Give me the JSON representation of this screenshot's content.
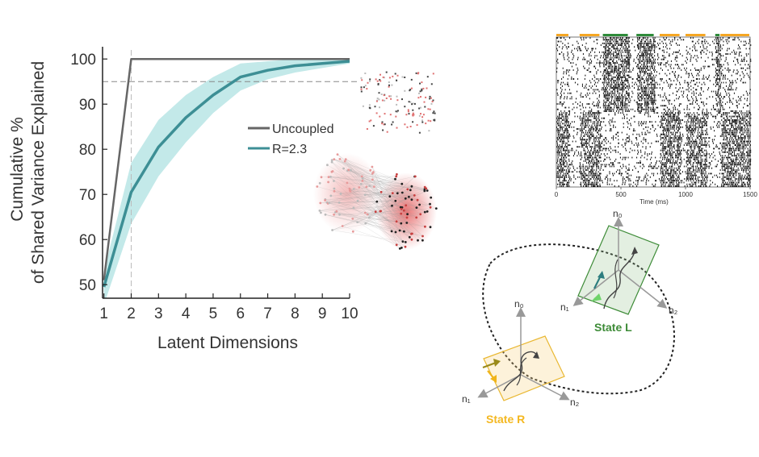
{
  "colors": {
    "uncoupled": "#666666",
    "coupled": "#3d8f95",
    "band": "#a9dfe0",
    "threshold": "#888888",
    "state_r": "#f4b821",
    "state_l": "#3d8b37",
    "raster_orange": "#f5a623",
    "raster_green": "#2e8b3a",
    "node_red": "#e04848",
    "node_dark": "#222222"
  },
  "chart_data": [
    {
      "type": "line",
      "title": "",
      "xlabel": "Latent Dimensions",
      "ylabel_lines": [
        "Cumulative %",
        "of Shared Variance Explained"
      ],
      "x": [
        1,
        2,
        3,
        4,
        5,
        6,
        7,
        8,
        9,
        10
      ],
      "xlim": [
        0.95,
        10
      ],
      "ylim": [
        47,
        102
      ],
      "xticks": [
        "1",
        "2",
        "3",
        "4",
        "5",
        "6",
        "7",
        "8",
        "9",
        "10"
      ],
      "yticks": [
        50,
        60,
        70,
        80,
        90,
        100
      ],
      "threshold_y": 95,
      "marker_x": 2,
      "legend_position": "center-right",
      "series": [
        {
          "name": "Uncoupled",
          "values": [
            51,
            100,
            100,
            100,
            100,
            100,
            100,
            100,
            100,
            100
          ]
        },
        {
          "name": "R=2.3",
          "values": [
            49.5,
            70.5,
            80.5,
            87,
            92,
            96,
            97.5,
            98.5,
            99,
            99.5
          ],
          "band_upper": [
            53,
            77,
            86.5,
            92,
            96,
            99,
            99.5,
            100,
            100,
            100
          ],
          "band_lower": [
            45.5,
            63.5,
            74,
            81.5,
            88,
            93,
            95.5,
            97,
            98,
            99
          ]
        }
      ]
    },
    {
      "type": "scatter",
      "title": "",
      "xlabel": "Time (ms)",
      "xlim": [
        0,
        1500
      ],
      "xticks": [
        0,
        500,
        1000,
        1500
      ],
      "state_bar": [
        {
          "start": 0,
          "end": 100,
          "state": "R"
        },
        {
          "start": 100,
          "end": 180,
          "state": "gap"
        },
        {
          "start": 180,
          "end": 340,
          "state": "R"
        },
        {
          "start": 340,
          "end": 360,
          "state": "gap"
        },
        {
          "start": 360,
          "end": 560,
          "state": "L"
        },
        {
          "start": 560,
          "end": 620,
          "state": "gap"
        },
        {
          "start": 620,
          "end": 760,
          "state": "L"
        },
        {
          "start": 760,
          "end": 800,
          "state": "gap"
        },
        {
          "start": 800,
          "end": 960,
          "state": "R"
        },
        {
          "start": 960,
          "end": 1000,
          "state": "gap"
        },
        {
          "start": 1000,
          "end": 1160,
          "state": "R"
        },
        {
          "start": 1160,
          "end": 1230,
          "state": "gap"
        },
        {
          "start": 1230,
          "end": 1270,
          "state": "L"
        },
        {
          "start": 1270,
          "end": 1500,
          "state": "R"
        }
      ]
    }
  ],
  "state_diagram": {
    "state_l": {
      "label": "State L",
      "axis_n0": "n₀",
      "axis_n1": "n₁",
      "axis_n2": "n₂"
    },
    "state_r": {
      "label": "State R",
      "axis_n0": "n₀",
      "axis_n1": "n₁",
      "axis_n2": "n₂"
    }
  }
}
